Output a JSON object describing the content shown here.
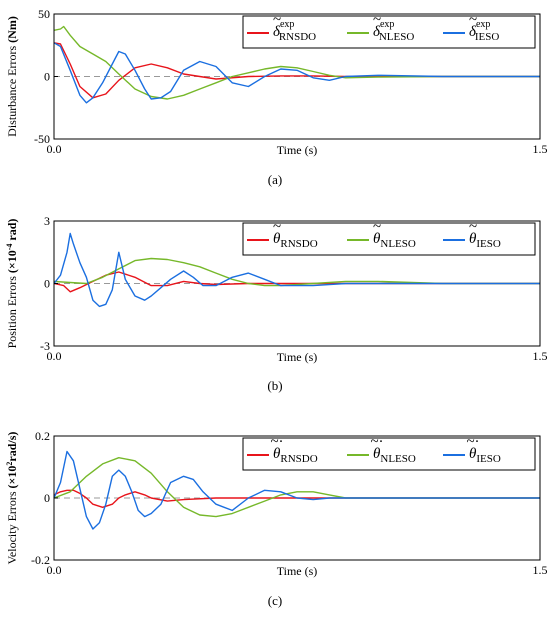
{
  "colors": {
    "rnsdo": "#e8141b",
    "nleso": "#76b82a",
    "ieso": "#1b6fe0"
  },
  "chart_data": [
    {
      "type": "line",
      "panel_label": "(a)",
      "ylabel_main": "Disturbance Errors ",
      "ylabel_unit": "(Nm)",
      "xlabel": "Time (s)",
      "xlim": [
        0.0,
        1.5
      ],
      "ylim": [
        -50,
        50
      ],
      "x_ticks": [
        "0.0",
        "1.5"
      ],
      "y_ticks": [
        "50",
        "0",
        "-50"
      ],
      "legend": {
        "placement": "top-right",
        "entries": [
          {
            "symbol": "δ",
            "accent": "~",
            "sup": "exp",
            "sub": "RNSDO"
          },
          {
            "symbol": "δ",
            "accent": "~",
            "sup": "exp",
            "sub": "NLESO"
          },
          {
            "symbol": "δ",
            "accent": "~",
            "sup": "exp",
            "sub": "IESO"
          }
        ]
      },
      "series": [
        {
          "key": "rnsdo",
          "x": [
            0,
            0.02,
            0.05,
            0.08,
            0.12,
            0.16,
            0.2,
            0.25,
            0.3,
            0.35,
            0.4,
            0.5,
            0.6,
            0.7,
            0.8,
            0.9,
            1.0,
            1.2,
            1.5
          ],
          "y": [
            27,
            26,
            10,
            -8,
            -17,
            -14,
            -3,
            7,
            10,
            7,
            2,
            -2,
            0,
            0.5,
            0.5,
            0,
            0,
            0,
            0
          ]
        },
        {
          "key": "nleso",
          "x": [
            0,
            0.02,
            0.03,
            0.05,
            0.08,
            0.12,
            0.16,
            0.2,
            0.25,
            0.3,
            0.35,
            0.4,
            0.45,
            0.5,
            0.55,
            0.6,
            0.65,
            0.7,
            0.75,
            0.8,
            0.85,
            0.9,
            1.0,
            1.2,
            1.5
          ],
          "y": [
            37,
            38,
            40,
            33,
            24,
            18,
            12,
            2,
            -10,
            -16,
            -18,
            -15,
            -10,
            -5,
            0,
            3,
            6,
            8,
            7,
            4,
            1,
            -1,
            -0.5,
            0,
            0
          ]
        },
        {
          "key": "ieso",
          "x": [
            0,
            0.02,
            0.05,
            0.08,
            0.1,
            0.12,
            0.15,
            0.18,
            0.2,
            0.22,
            0.25,
            0.28,
            0.3,
            0.33,
            0.36,
            0.4,
            0.45,
            0.5,
            0.55,
            0.6,
            0.65,
            0.7,
            0.75,
            0.8,
            0.85,
            0.9,
            1.0,
            1.2,
            1.5
          ],
          "y": [
            27,
            24,
            5,
            -15,
            -21,
            -17,
            -5,
            10,
            20,
            18,
            5,
            -10,
            -18,
            -17,
            -12,
            5,
            12,
            8,
            -5,
            -8,
            0,
            6,
            5,
            -1,
            -3,
            0,
            1,
            0,
            0
          ]
        }
      ]
    },
    {
      "type": "line",
      "panel_label": "(b)",
      "ylabel_main": "Position Errors ",
      "ylabel_unit": "(×10",
      "ylabel_exp": "-4",
      "ylabel_unit_end": " rad)",
      "xlabel": "Time (s)",
      "xlim": [
        0.0,
        1.5
      ],
      "ylim": [
        -3,
        3
      ],
      "x_ticks": [
        "0.0",
        "1.5"
      ],
      "y_ticks": [
        "3",
        "0",
        "-3"
      ],
      "legend": {
        "placement": "top-right",
        "entries": [
          {
            "symbol": "θ",
            "accent": "~",
            "sub": "RNSDO"
          },
          {
            "symbol": "θ",
            "accent": "~",
            "sub": "NLESO"
          },
          {
            "symbol": "θ",
            "accent": "~",
            "sub": "IESO"
          }
        ]
      },
      "series": [
        {
          "key": "rnsdo",
          "x": [
            0,
            0.03,
            0.05,
            0.08,
            0.12,
            0.16,
            0.2,
            0.25,
            0.3,
            0.35,
            0.4,
            0.45,
            0.5,
            0.6,
            0.7,
            0.8,
            1.0,
            1.5
          ],
          "y": [
            0,
            -0.1,
            -0.4,
            -0.2,
            0.1,
            0.4,
            0.55,
            0.3,
            -0.1,
            -0.1,
            0.1,
            0,
            -0.05,
            0,
            0,
            0,
            0,
            0
          ]
        },
        {
          "key": "nleso",
          "x": [
            0,
            0.05,
            0.1,
            0.15,
            0.2,
            0.25,
            0.3,
            0.35,
            0.4,
            0.45,
            0.5,
            0.55,
            0.6,
            0.65,
            0.7,
            0.8,
            0.9,
            1.0,
            1.2,
            1.5
          ],
          "y": [
            0.1,
            0.05,
            0,
            0.3,
            0.7,
            1.1,
            1.2,
            1.15,
            1.0,
            0.8,
            0.5,
            0.2,
            0,
            -0.1,
            -0.1,
            0,
            0.1,
            0.1,
            0,
            0
          ]
        },
        {
          "key": "ieso",
          "x": [
            0,
            0.02,
            0.04,
            0.05,
            0.06,
            0.08,
            0.1,
            0.12,
            0.14,
            0.16,
            0.18,
            0.2,
            0.22,
            0.25,
            0.28,
            0.3,
            0.33,
            0.36,
            0.4,
            0.43,
            0.46,
            0.5,
            0.55,
            0.6,
            0.65,
            0.7,
            0.8,
            0.9,
            1.0,
            1.5
          ],
          "y": [
            0,
            0.4,
            1.5,
            2.4,
            1.9,
            1.0,
            0.3,
            -0.8,
            -1.1,
            -1.0,
            -0.3,
            1.5,
            0.2,
            -0.6,
            -0.8,
            -0.6,
            -0.2,
            0.2,
            0.6,
            0.3,
            -0.1,
            -0.1,
            0.3,
            0.5,
            0.2,
            -0.1,
            -0.1,
            0,
            0,
            0
          ]
        }
      ]
    },
    {
      "type": "line",
      "panel_label": "(c)",
      "ylabel_main": "Velocity Errors ",
      "ylabel_unit": "(×10",
      "ylabel_exp": "2",
      "ylabel_unit_end": "rad/s)",
      "xlabel": "Time (s)",
      "xlim": [
        0.0,
        1.5
      ],
      "ylim": [
        -0.2,
        0.2
      ],
      "x_ticks": [
        "0.0",
        "1.5"
      ],
      "y_ticks": [
        "0.2",
        "0",
        "-0.2"
      ],
      "legend": {
        "placement": "top-right",
        "entries": [
          {
            "symbol": "θ",
            "accent": "~·",
            "sub": "RNSDO"
          },
          {
            "symbol": "θ",
            "accent": "~·",
            "sub": "NLESO"
          },
          {
            "symbol": "θ",
            "accent": "~·",
            "sub": "IESO"
          }
        ]
      },
      "series": [
        {
          "key": "rnsdo",
          "x": [
            0,
            0.02,
            0.04,
            0.06,
            0.08,
            0.1,
            0.12,
            0.15,
            0.18,
            0.2,
            0.22,
            0.25,
            0.28,
            0.3,
            0.35,
            0.4,
            0.5,
            0.6,
            0.7,
            0.8,
            1.0,
            1.5
          ],
          "y": [
            0.01,
            0.02,
            0.025,
            0.025,
            0.015,
            0,
            -0.02,
            -0.03,
            -0.02,
            0,
            0.01,
            0.02,
            0.01,
            0,
            -0.01,
            -0.005,
            0,
            0,
            0,
            0,
            0,
            0
          ]
        },
        {
          "key": "nleso",
          "x": [
            0,
            0.05,
            0.1,
            0.15,
            0.2,
            0.25,
            0.3,
            0.35,
            0.4,
            0.45,
            0.5,
            0.55,
            0.6,
            0.65,
            0.7,
            0.75,
            0.8,
            0.85,
            0.9,
            1.0,
            1.2,
            1.5
          ],
          "y": [
            0,
            0.02,
            0.07,
            0.11,
            0.13,
            0.12,
            0.08,
            0.02,
            -0.03,
            -0.055,
            -0.06,
            -0.05,
            -0.03,
            -0.01,
            0.01,
            0.02,
            0.02,
            0.01,
            0,
            0,
            0,
            0
          ]
        },
        {
          "key": "ieso",
          "x": [
            0,
            0.02,
            0.04,
            0.06,
            0.08,
            0.1,
            0.12,
            0.14,
            0.16,
            0.18,
            0.2,
            0.22,
            0.24,
            0.26,
            0.28,
            0.3,
            0.33,
            0.36,
            0.4,
            0.43,
            0.46,
            0.5,
            0.55,
            0.6,
            0.65,
            0.7,
            0.75,
            0.8,
            0.85,
            0.9,
            1.0,
            1.5
          ],
          "y": [
            0,
            0.05,
            0.15,
            0.12,
            0.03,
            -0.06,
            -0.1,
            -0.08,
            -0.02,
            0.07,
            0.09,
            0.07,
            0.02,
            -0.04,
            -0.06,
            -0.05,
            -0.02,
            0.05,
            0.07,
            0.06,
            0.02,
            -0.02,
            -0.04,
            0,
            0.025,
            0.02,
            0,
            -0.005,
            0,
            0,
            0,
            0
          ]
        }
      ]
    }
  ]
}
